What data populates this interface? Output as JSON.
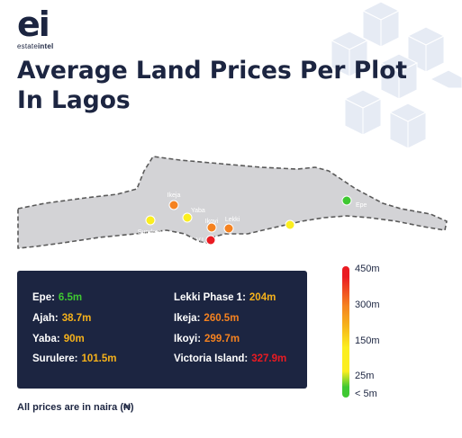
{
  "brand": {
    "mark": "ei",
    "word_plain": "estate",
    "word_bold": "intel"
  },
  "title_lines": [
    "Average Land Prices Per Plot",
    "In Lagos"
  ],
  "map": {
    "locations": [
      {
        "name": "Ikeja",
        "price_m": 260.5,
        "color": "#f58220"
      },
      {
        "name": "Yaba",
        "price_m": 90,
        "color": "#fbee1f"
      },
      {
        "name": "Surulere",
        "price_m": 101.5,
        "color": "#fbee1f"
      },
      {
        "name": "Ikoyi",
        "price_m": 299.7,
        "color": "#f58220"
      },
      {
        "name": "Lekki",
        "price_m": 204,
        "color": "#f58220"
      },
      {
        "name": "V.I",
        "price_m": 327.9,
        "color": "#ea1b22"
      },
      {
        "name": "Ajah",
        "price_m": 38.7,
        "color": "#fbee1f"
      },
      {
        "name": "Epe",
        "price_m": 6.5,
        "color": "#3fc832"
      }
    ]
  },
  "panel": {
    "left_items": [
      {
        "label": "Epe:",
        "value": "6.5m",
        "color": "#3fc832"
      },
      {
        "label": "Ajah:",
        "value": "38.7m",
        "color": "#f6b21b"
      },
      {
        "label": "Yaba:",
        "value": "90m",
        "color": "#f6b21b"
      },
      {
        "label": "Surulere:",
        "value": "101.5m",
        "color": "#f6b21b"
      }
    ],
    "right_items": [
      {
        "label": "Lekki Phase 1:",
        "value": "204m",
        "color": "#f6b21b"
      },
      {
        "label": "Ikeja:",
        "value": "260.5m",
        "color": "#f58220"
      },
      {
        "label": "Ikoyi:",
        "value": "299.7m",
        "color": "#f58220"
      },
      {
        "label": "Victoria Island:",
        "value": "327.9m",
        "color": "#ea1b22"
      }
    ]
  },
  "scale": {
    "labels": [
      "450m",
      "300m",
      "150m",
      "25m",
      "< 5m"
    ],
    "colors": {
      "high": "#ea1b22",
      "mid_high": "#f58220",
      "mid": "#fbee1f",
      "low": "#3fc832"
    }
  },
  "footnote": "All prices are in naira (₦)"
}
